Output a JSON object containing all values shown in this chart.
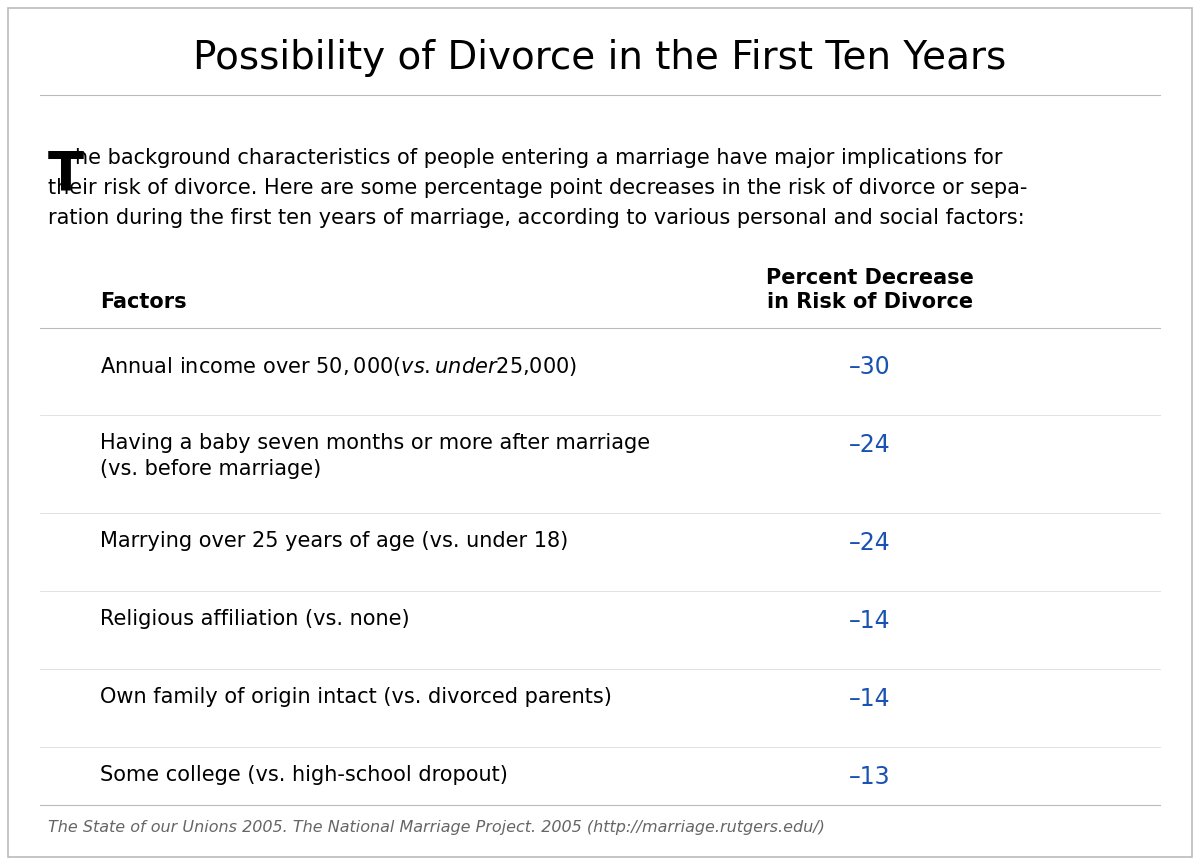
{
  "title": "Possibility of Divorce in the First Ten Years",
  "intro_line1": "he background characteristics of people entering a marriage have major implications for",
  "intro_line2": "their risk of divorce. Here are some percentage point decreases in the risk of divorce or sepa-",
  "intro_line3": "ration during the first ten years of marriage, according to various personal and social factors:",
  "dropcap": "T",
  "col_header_left": "Factors",
  "col_header_right_line1": "Percent Decrease",
  "col_header_right_line2": "in Risk of Divorce",
  "rows": [
    {
      "factor": "Annual income over $50,000 (vs. under $25,000)",
      "value": "–30",
      "multiline": false
    },
    {
      "factor_line1": "Having a baby seven months or more after marriage",
      "factor_line2": "(vs. before marriage)",
      "value": "–24",
      "multiline": true
    },
    {
      "factor": "Marrying over 25 years of age (vs. under 18)",
      "value": "–24",
      "multiline": false
    },
    {
      "factor": "Religious affiliation (vs. none)",
      "value": "–14",
      "multiline": false
    },
    {
      "factor": "Own family of origin intact (vs. divorced parents)",
      "value": "–14",
      "multiline": false
    },
    {
      "factor": "Some college (vs. high-school dropout)",
      "value": "–13",
      "multiline": false
    }
  ],
  "footnote": "The State of our Unions 2005. The National Marriage Project. 2005 (http://marriage.rutgers.edu/)",
  "bg_color": "#FFFFFF",
  "border_color": "#BBBBBB",
  "title_color": "#000000",
  "text_color": "#000000",
  "value_color": "#1a52b3",
  "footnote_color": "#666666",
  "title_fontsize": 28,
  "header_fontsize": 15,
  "body_fontsize": 15,
  "value_fontsize": 17,
  "footnote_fontsize": 11.5,
  "dropcap_fontsize": 38,
  "intro_fontsize": 15
}
